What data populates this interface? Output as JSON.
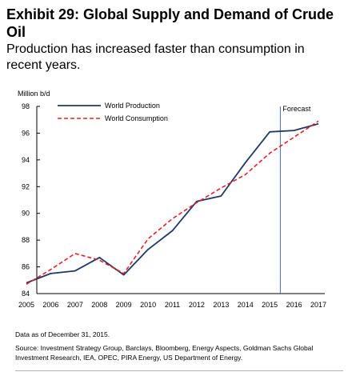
{
  "title": "Exhibit 29: Global Supply and Demand of Crude Oil",
  "subtitle": "Production has increased faster than consumption in recent years.",
  "note": "Data as of December 31, 2015.",
  "source": "Source: Investment Strategy Group, Barclays, Bloomberg, Energy Aspects, Goldman Sachs Global Investment Research, IEA, OPEC, PIRA Energy, US Department of Energy.",
  "chart_data": {
    "type": "line",
    "title": "",
    "xlabel": "",
    "ylabel": "Million b/d",
    "x": [
      2005,
      2006,
      2007,
      2008,
      2009,
      2010,
      2011,
      2012,
      2013,
      2014,
      2015,
      2016,
      2017
    ],
    "xlim": [
      2005,
      2017
    ],
    "ylim": [
      84,
      98
    ],
    "yticks": [
      84,
      86,
      88,
      90,
      92,
      94,
      96,
      98
    ],
    "grid": false,
    "legend_position": "top-left",
    "series": [
      {
        "name": "World Production",
        "style": "solid",
        "color": "#1f3864",
        "values": [
          84.8,
          85.5,
          85.7,
          86.7,
          85.4,
          87.3,
          88.7,
          90.9,
          91.3,
          93.8,
          96.1,
          96.2,
          96.7
        ]
      },
      {
        "name": "World Consumption",
        "style": "dashed",
        "color": "#e8202a",
        "values": [
          84.7,
          85.8,
          87.0,
          86.5,
          85.5,
          88.1,
          89.6,
          90.8,
          91.9,
          92.9,
          94.5,
          95.7,
          96.9
        ]
      }
    ],
    "annotations": [
      {
        "label": "Forecast",
        "x": 2015.5
      }
    ],
    "colors": {
      "axis": "#000000",
      "forecast_line": "#4a6fa5"
    }
  }
}
